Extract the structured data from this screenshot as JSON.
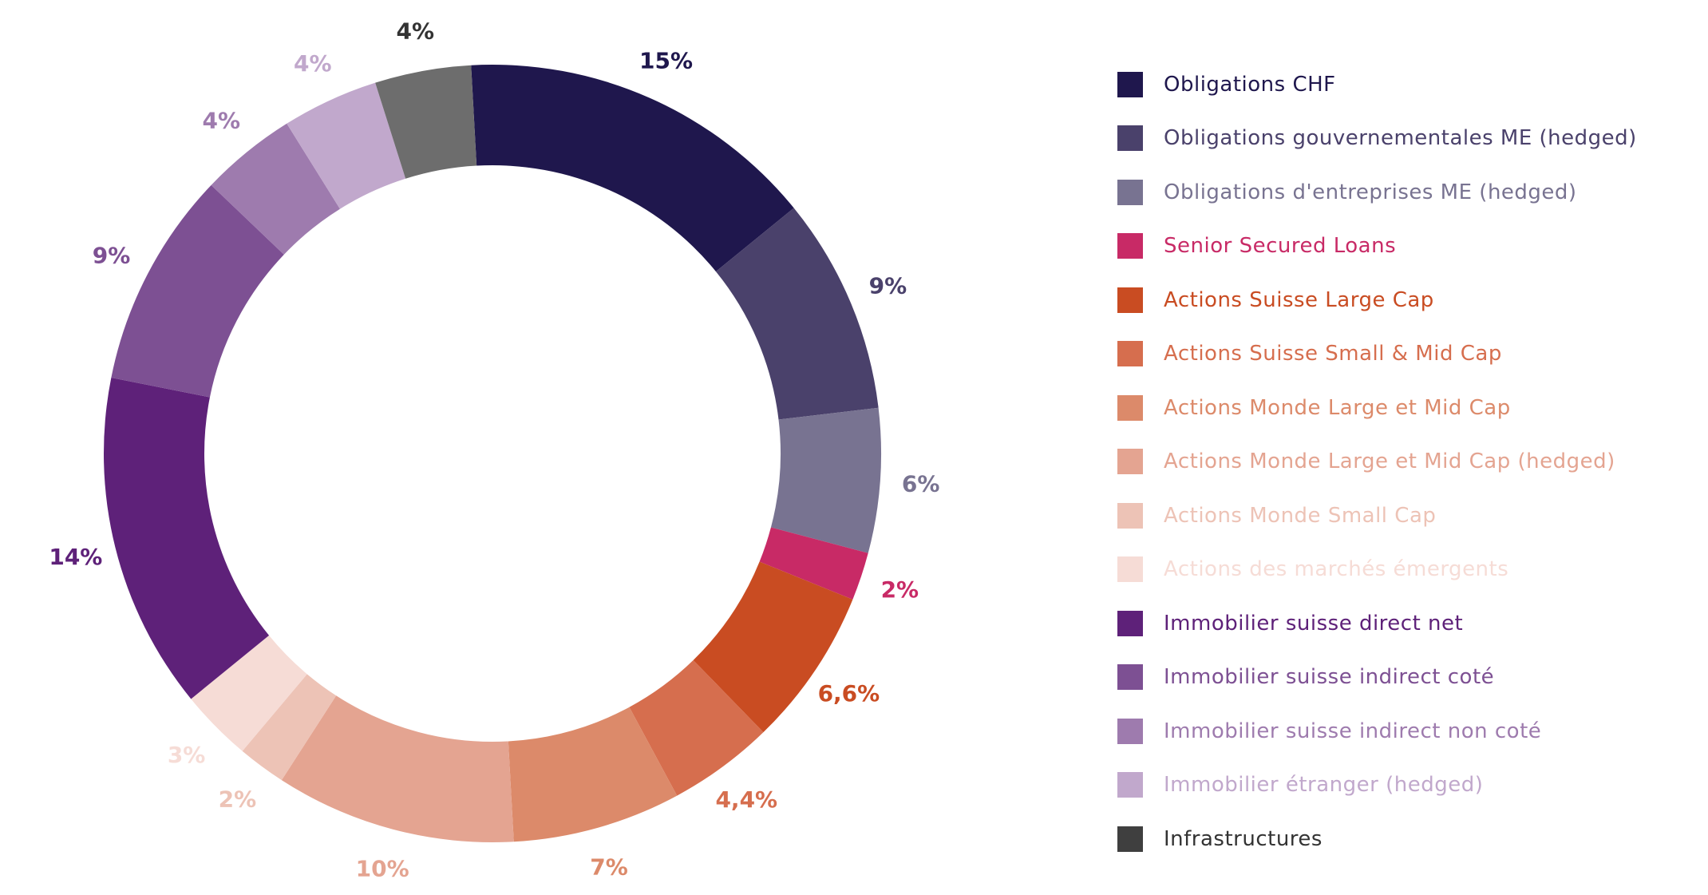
{
  "chart_data": {
    "type": "pie",
    "variant": "donut",
    "legend_position": "right",
    "slices": [
      {
        "name": "Obligations CHF",
        "value": 15,
        "label": "15%",
        "color": "#1f174d"
      },
      {
        "name": "Obligations gouvernementales ME (hedged)",
        "value": 9,
        "label": "9%",
        "color": "#4a416b"
      },
      {
        "name": "Obligations d'entreprises ME (hedged)",
        "value": 6,
        "label": "6%",
        "color": "#787391"
      },
      {
        "name": "Senior Secured Loans",
        "value": 2,
        "label": "2%",
        "color": "#c82a66"
      },
      {
        "name": "Actions Suisse Large Cap",
        "value": 6.6,
        "label": "6,6%",
        "color": "#c94c22"
      },
      {
        "name": "Actions Suisse Small & Mid Cap",
        "value": 4.4,
        "label": "4,4%",
        "color": "#d66e4e"
      },
      {
        "name": "Actions Monde Large et Mid Cap",
        "value": 7,
        "label": "7%",
        "color": "#dc8a6a"
      },
      {
        "name": "Actions Monde Large et Mid Cap (hedged)",
        "value": 10,
        "label": "10%",
        "color": "#e4a491"
      },
      {
        "name": "Actions Monde Small Cap",
        "value": 2,
        "label": "2%",
        "color": "#edc3b6"
      },
      {
        "name": "Actions des marchés émergents",
        "value": 3,
        "label": "3%",
        "color": "#f6dcd6"
      },
      {
        "name": "Immobilier suisse direct net",
        "value": 14,
        "label": "14%",
        "color": "#5e2179"
      },
      {
        "name": "Immobilier suisse indirect coté",
        "value": 9,
        "label": "9%",
        "color": "#7d5093"
      },
      {
        "name": "Immobilier suisse indirect non coté",
        "value": 4,
        "label": "4%",
        "color": "#9e7bae"
      },
      {
        "name": "Immobilier étranger (hedged)",
        "value": 4,
        "label": "4%",
        "color": "#c1a8cc"
      },
      {
        "name": "Infrastructures",
        "value": 4,
        "label": "4%",
        "color": "#6d6d6d"
      }
    ],
    "legend_label_colors": [
      "#1f174d",
      "#4a416b",
      "#787391",
      "#c82a66",
      "#c94c22",
      "#d66e4e",
      "#dc8a6a",
      "#e4a491",
      "#edc3b6",
      "#f6dcd6",
      "#5e2179",
      "#7d5093",
      "#9e7bae",
      "#c1a8cc",
      "#333333"
    ],
    "legend_swatch_colors": [
      "#1f174d",
      "#4a416b",
      "#787391",
      "#c82a66",
      "#c94c22",
      "#d66e4e",
      "#dc8a6a",
      "#e4a491",
      "#edc3b6",
      "#f6dcd6",
      "#5e2179",
      "#7d5093",
      "#9e7bae",
      "#c1a8cc",
      "#3f3f3f"
    ]
  }
}
